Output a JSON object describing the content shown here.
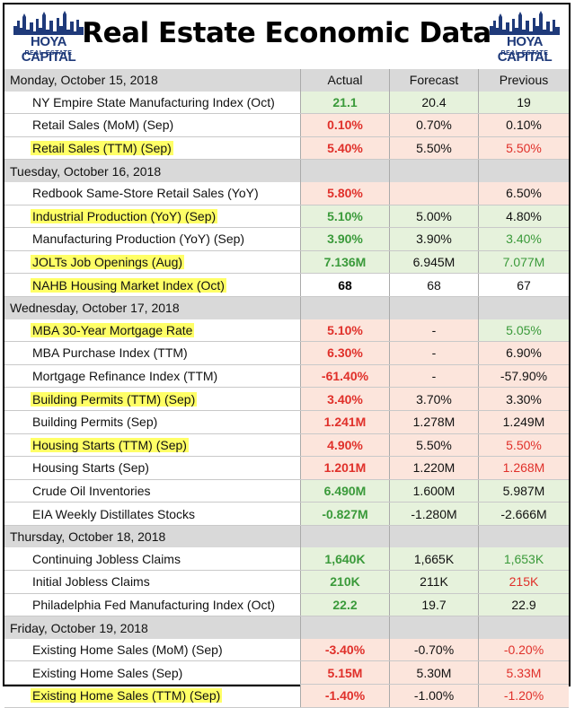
{
  "title": "Real Estate Economic Data",
  "logo": {
    "line1": "HOYA CAPITAL",
    "line2": "REAL ESTATE"
  },
  "columns": {
    "actual": "Actual",
    "forecast": "Forecast",
    "previous": "Previous"
  },
  "colors": {
    "green_bg": "#e6f2dc",
    "red_bg": "#fce5dc",
    "green_text": "#3a9a3a",
    "red_text": "#e0302a",
    "highlight": "#ffff66",
    "day_bg": "#d9d9d9"
  },
  "rows": [
    {
      "type": "day",
      "label": "Monday, October 15, 2018"
    },
    {
      "type": "item",
      "label": "NY Empire State Manufacturing Index (Oct)",
      "hl": false,
      "actual": "21.1",
      "a_tone": "green",
      "forecast": "20.4",
      "f_tone": "green",
      "previous": "19",
      "p_tone": "green",
      "p_tx": "black"
    },
    {
      "type": "item",
      "label": "Retail Sales (MoM) (Sep)",
      "hl": false,
      "actual": "0.10%",
      "a_tone": "red",
      "forecast": "0.70%",
      "f_tone": "red",
      "previous": "0.10%",
      "p_tone": "red",
      "p_tx": "black"
    },
    {
      "type": "item",
      "label": "Retail Sales (TTM) (Sep)",
      "hl": true,
      "actual": "5.40%",
      "a_tone": "red",
      "forecast": "5.50%",
      "f_tone": "red",
      "previous": "5.50%",
      "p_tone": "red",
      "p_tx": "red"
    },
    {
      "type": "day",
      "label": "Tuesday, October 16, 2018"
    },
    {
      "type": "item",
      "label": "Redbook Same-Store Retail Sales (YoY)",
      "hl": false,
      "actual": "5.80%",
      "a_tone": "red",
      "forecast": "",
      "f_tone": "red",
      "previous": "6.50%",
      "p_tone": "red",
      "p_tx": "black"
    },
    {
      "type": "item",
      "label": "Industrial Production (YoY) (Sep)",
      "hl": true,
      "actual": "5.10%",
      "a_tone": "green",
      "forecast": "5.00%",
      "f_tone": "green",
      "previous": "4.80%",
      "p_tone": "green",
      "p_tx": "black"
    },
    {
      "type": "item",
      "label": "Manufacturing Production (YoY) (Sep)",
      "hl": false,
      "actual": "3.90%",
      "a_tone": "green",
      "forecast": "3.90%",
      "f_tone": "green",
      "previous": "3.40%",
      "p_tone": "green",
      "p_tx": "green"
    },
    {
      "type": "item",
      "label": "JOLTs Job Openings (Aug)",
      "hl": true,
      "actual": "7.136M",
      "a_tone": "green",
      "forecast": "6.945M",
      "f_tone": "green",
      "previous": "7.077M",
      "p_tone": "green",
      "p_tx": "green"
    },
    {
      "type": "item",
      "label": "NAHB Housing Market Index (Oct)",
      "hl": true,
      "actual": "68",
      "a_tone": "none",
      "forecast": "68",
      "f_tone": "none",
      "previous": "67",
      "p_tone": "none",
      "p_tx": "black"
    },
    {
      "type": "day",
      "label": "Wednesday, October 17, 2018"
    },
    {
      "type": "item",
      "label": "MBA 30-Year Mortgage Rate",
      "hl": true,
      "actual": "5.10%",
      "a_tone": "red",
      "forecast": "-",
      "f_tone": "red",
      "previous": "5.05%",
      "p_tone": "green",
      "p_tx": "green"
    },
    {
      "type": "item",
      "label": "MBA Purchase Index (TTM)",
      "hl": false,
      "actual": "6.30%",
      "a_tone": "red",
      "forecast": "-",
      "f_tone": "red",
      "previous": "6.90%",
      "p_tone": "red",
      "p_tx": "black"
    },
    {
      "type": "item",
      "label": "Mortgage Refinance Index (TTM)",
      "hl": false,
      "actual": "-61.40%",
      "a_tone": "red",
      "forecast": "-",
      "f_tone": "red",
      "previous": "-57.90%",
      "p_tone": "red",
      "p_tx": "black"
    },
    {
      "type": "item",
      "label": "Building Permits (TTM) (Sep)",
      "hl": true,
      "actual": "3.40%",
      "a_tone": "red",
      "forecast": "3.70%",
      "f_tone": "red",
      "previous": "3.30%",
      "p_tone": "red",
      "p_tx": "black"
    },
    {
      "type": "item",
      "label": "Building Permits (Sep)",
      "hl": false,
      "actual": "1.241M",
      "a_tone": "red",
      "forecast": "1.278M",
      "f_tone": "red",
      "previous": "1.249M",
      "p_tone": "red",
      "p_tx": "black"
    },
    {
      "type": "item",
      "label": "Housing Starts (TTM) (Sep)",
      "hl": true,
      "actual": "4.90%",
      "a_tone": "red",
      "forecast": "5.50%",
      "f_tone": "red",
      "previous": "5.50%",
      "p_tone": "red",
      "p_tx": "red"
    },
    {
      "type": "item",
      "label": "Housing Starts (Sep)",
      "hl": false,
      "actual": "1.201M",
      "a_tone": "red",
      "forecast": "1.220M",
      "f_tone": "red",
      "previous": "1.268M",
      "p_tone": "red",
      "p_tx": "red"
    },
    {
      "type": "item",
      "label": "Crude Oil Inventories",
      "hl": false,
      "actual": "6.490M",
      "a_tone": "green",
      "forecast": "1.600M",
      "f_tone": "green",
      "previous": "5.987M",
      "p_tone": "green",
      "p_tx": "black"
    },
    {
      "type": "item",
      "label": "EIA Weekly Distillates Stocks",
      "hl": false,
      "actual": "-0.827M",
      "a_tone": "green",
      "forecast": "-1.280M",
      "f_tone": "green",
      "previous": "-2.666M",
      "p_tone": "green",
      "p_tx": "black"
    },
    {
      "type": "day",
      "label": "Thursday, October 18, 2018"
    },
    {
      "type": "item",
      "label": "Continuing Jobless Claims",
      "hl": false,
      "actual": "1,640K",
      "a_tone": "green",
      "forecast": "1,665K",
      "f_tone": "green",
      "previous": "1,653K",
      "p_tone": "green",
      "p_tx": "green"
    },
    {
      "type": "item",
      "label": "Initial Jobless Claims",
      "hl": false,
      "actual": "210K",
      "a_tone": "green",
      "forecast": "211K",
      "f_tone": "green",
      "previous": "215K",
      "p_tone": "green",
      "p_tx": "red"
    },
    {
      "type": "item",
      "label": "Philadelphia Fed Manufacturing Index (Oct)",
      "hl": false,
      "actual": "22.2",
      "a_tone": "green",
      "forecast": "19.7",
      "f_tone": "green",
      "previous": "22.9",
      "p_tone": "green",
      "p_tx": "black"
    },
    {
      "type": "day",
      "label": "Friday, October 19, 2018"
    },
    {
      "type": "item",
      "label": "Existing Home Sales (MoM) (Sep)",
      "hl": false,
      "actual": "-3.40%",
      "a_tone": "red",
      "forecast": "-0.70%",
      "f_tone": "red",
      "previous": "-0.20%",
      "p_tone": "red",
      "p_tx": "red"
    },
    {
      "type": "item",
      "label": "Existing Home Sales (Sep)",
      "hl": false,
      "actual": "5.15M",
      "a_tone": "red",
      "forecast": "5.30M",
      "f_tone": "red",
      "previous": "5.33M",
      "p_tone": "red",
      "p_tx": "red"
    },
    {
      "type": "item",
      "label": "Existing Home Sales (TTM) (Sep)",
      "hl": true,
      "actual": "-1.40%",
      "a_tone": "red",
      "forecast": "-1.00%",
      "f_tone": "red",
      "previous": "-1.20%",
      "p_tone": "red",
      "p_tx": "red"
    }
  ]
}
